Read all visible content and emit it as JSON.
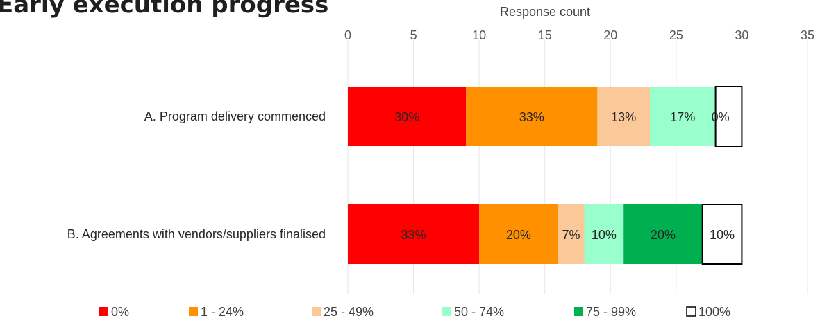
{
  "chart_data": {
    "type": "bar",
    "orientation": "horizontal",
    "stacked": true,
    "title": "Early execution progress",
    "xlabel": "Response count",
    "xlim": [
      0,
      35
    ],
    "xticks": [
      0,
      5,
      10,
      15,
      20,
      25,
      30,
      35
    ],
    "grid": true,
    "legend_position": "bottom",
    "categories": [
      "A. Program delivery commenced",
      "B. Agreements with vendors/suppliers finalised"
    ],
    "series": [
      {
        "name": "0%",
        "color": "#ff0000",
        "values": [
          9,
          10
        ],
        "labels": [
          "30%",
          "33%"
        ]
      },
      {
        "name": "1 - 24%",
        "color": "#ff9000",
        "values": [
          10,
          6
        ],
        "labels": [
          "33%",
          "20%"
        ]
      },
      {
        "name": "25 - 49%",
        "color": "#fbc89a",
        "values": [
          4,
          2
        ],
        "labels": [
          "13%",
          "7%"
        ]
      },
      {
        "name": "50 - 74%",
        "color": "#99ffcc",
        "values": [
          5,
          3
        ],
        "labels": [
          "17%",
          "10%"
        ]
      },
      {
        "name": "75 - 99%",
        "color": "#00b050",
        "values": [
          0,
          6
        ],
        "labels": [
          "0%",
          "20%"
        ]
      },
      {
        "name": "100%",
        "color": "#ffffff",
        "values": [
          2,
          3
        ],
        "labels": [
          "",
          "10%"
        ]
      }
    ]
  }
}
